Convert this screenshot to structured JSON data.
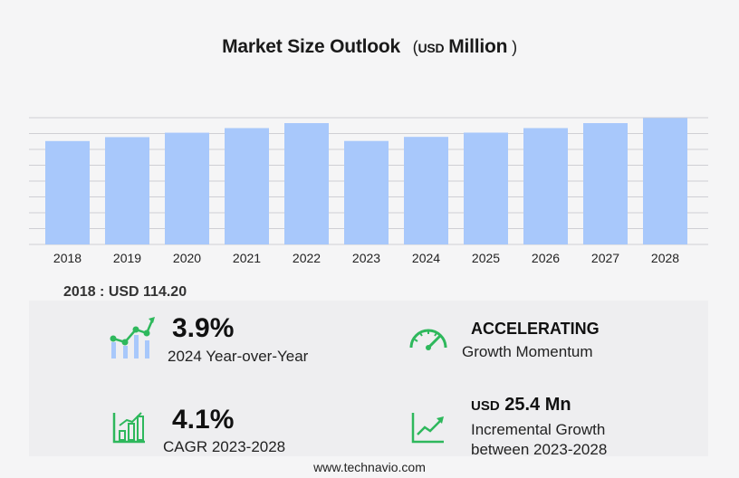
{
  "title": {
    "main": "Market Size Outlook",
    "open": "(",
    "unit": "USD",
    "unit_suffix": "Million",
    "close": ")"
  },
  "chart_data": {
    "type": "bar",
    "categories": [
      "2018",
      "2019",
      "2020",
      "2021",
      "2022",
      "2023",
      "2024",
      "2025",
      "2026",
      "2027",
      "2028"
    ],
    "values": [
      114.2,
      118.5,
      123.4,
      128.5,
      134.0,
      114.3,
      118.8,
      123.5,
      128.5,
      134.0,
      139.7
    ],
    "ylim": [
      0,
      140
    ],
    "grid": true,
    "bar_color": "#a8c8fb"
  },
  "base_year": {
    "label": "2018 : USD  114.20"
  },
  "kpis": {
    "yoy": {
      "value": "3.9%",
      "label": "2024 Year-over-Year"
    },
    "momentum": {
      "value": "ACCELERATING",
      "label": "Growth Momentum"
    },
    "cagr": {
      "value": "4.1%",
      "label": "CAGR 2023-2028"
    },
    "incremental": {
      "unit": "USD",
      "value": "25.4 Mn",
      "label1": "Incremental Growth",
      "label2": "between 2023-2028"
    }
  },
  "colors": {
    "accent_green": "#2eb85c",
    "bar": "#a8c8fb",
    "grid": "#cfcfd4"
  },
  "icons": [
    "bar-growth-icon",
    "speedometer-icon",
    "bar-chart-icon",
    "line-growth-icon"
  ],
  "footer": "www.technavio.com"
}
